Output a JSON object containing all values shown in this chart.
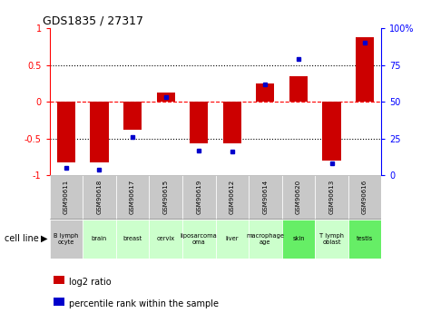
{
  "title": "GDS1835 / 27317",
  "samples": [
    "GSM90611",
    "GSM90618",
    "GSM90617",
    "GSM90615",
    "GSM90619",
    "GSM90612",
    "GSM90614",
    "GSM90620",
    "GSM90613",
    "GSM90616"
  ],
  "cell_lines": [
    "B lymph\nocyte",
    "brain",
    "breast",
    "cervix",
    "liposarcoma\noma",
    "liver",
    "macrophage\nage",
    "skin",
    "T lymph\noblast",
    "testis"
  ],
  "log2_ratio": [
    -0.82,
    -0.82,
    -0.38,
    0.12,
    -0.57,
    -0.57,
    0.25,
    0.35,
    -0.8,
    0.88
  ],
  "percentile_rank": [
    5,
    4,
    26,
    53,
    17,
    16,
    62,
    79,
    8,
    90
  ],
  "bar_color": "#CC0000",
  "dot_color": "#0000CC",
  "ylim_left": [
    -1,
    1
  ],
  "ylim_right": [
    0,
    100
  ],
  "yticks_left": [
    -1,
    -0.5,
    0,
    0.5,
    1
  ],
  "yticks_right": [
    0,
    25,
    50,
    75,
    100
  ],
  "cell_line_colors": [
    "#c8c8c8",
    "#ccffcc",
    "#ccffcc",
    "#ccffcc",
    "#ccffcc",
    "#ccffcc",
    "#ccffcc",
    "#66ee66",
    "#ccffcc",
    "#66ee66"
  ],
  "gsm_bg_color": "#c8c8c8",
  "legend_red_label": "log2 ratio",
  "legend_blue_label": "percentile rank within the sample",
  "cell_line_label": "cell line"
}
